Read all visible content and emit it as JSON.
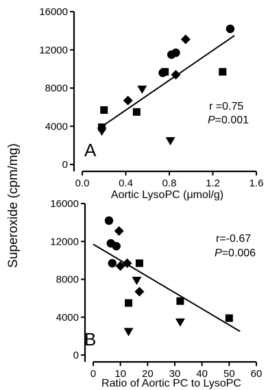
{
  "ylabel_shared": "Superoxide (cpm/mg)",
  "chart_data": [
    {
      "type": "scatter",
      "panel": "A",
      "xlabel": "Aortic LysoPC (μmol/g)",
      "ylabel": "Superoxide (cpm/mg)",
      "xlim": [
        0.0,
        1.6
      ],
      "ylim": [
        0,
        16000
      ],
      "xticks": [
        "0.0",
        "0.4",
        "0.8",
        "1.2",
        "1.6"
      ],
      "yticks": [
        "0",
        "4000",
        "8000",
        "12000",
        "16000"
      ],
      "stat_r": "r =0.75",
      "stat_p_letter": "P",
      "stat_p_value": "=0.001",
      "series": [
        {
          "marker": "circle",
          "points": [
            [
              0.74,
              9600
            ],
            [
              0.82,
              11500
            ],
            [
              0.86,
              11700
            ],
            [
              1.36,
              14200
            ]
          ]
        },
        {
          "marker": "diamond",
          "points": [
            [
              0.42,
              6700
            ],
            [
              0.86,
              9400
            ],
            [
              0.95,
              13100
            ]
          ]
        },
        {
          "marker": "square",
          "points": [
            [
              0.18,
              3900
            ],
            [
              0.2,
              5700
            ],
            [
              0.5,
              5500
            ],
            [
              0.76,
              9700
            ],
            [
              1.29,
              9700
            ]
          ]
        },
        {
          "marker": "triangle-down",
          "points": [
            [
              0.18,
              3500
            ],
            [
              0.55,
              7900
            ],
            [
              0.81,
              2500
            ]
          ]
        }
      ],
      "fit_line": [
        [
          0.17,
          3900
        ],
        [
          1.4,
          13500
        ]
      ]
    },
    {
      "type": "scatter",
      "panel": "B",
      "xlabel": "Ratio of Aortic PC to LysoPC",
      "ylabel": "Superoxide (cpm/mg)",
      "xlim": [
        0,
        60
      ],
      "ylim": [
        0,
        16000
      ],
      "xticks": [
        "0",
        "10",
        "20",
        "30",
        "40",
        "50",
        "60"
      ],
      "yticks": [
        "0",
        "4000",
        "8000",
        "12000",
        "16000"
      ],
      "stat_r": "r=-0.67",
      "stat_p_letter": "P",
      "stat_p_value": "=0.006",
      "series": [
        {
          "marker": "circle",
          "points": [
            [
              5.8,
              14200
            ],
            [
              6.5,
              11800
            ],
            [
              7,
              9700
            ],
            [
              8.5,
              11500
            ]
          ]
        },
        {
          "marker": "diamond",
          "points": [
            [
              9.5,
              13100
            ],
            [
              10,
              9400
            ],
            [
              12.5,
              9700
            ],
            [
              17,
              6700
            ]
          ]
        },
        {
          "marker": "square",
          "points": [
            [
              13,
              5500
            ],
            [
              17,
              9700
            ],
            [
              32,
              5700
            ],
            [
              50,
              3900
            ]
          ]
        },
        {
          "marker": "triangle-down",
          "points": [
            [
              13,
              2500
            ],
            [
              16,
              7900
            ],
            [
              32,
              3500
            ]
          ]
        }
      ],
      "fit_line": [
        [
          0,
          11700
        ],
        [
          54,
          2500
        ]
      ]
    }
  ]
}
